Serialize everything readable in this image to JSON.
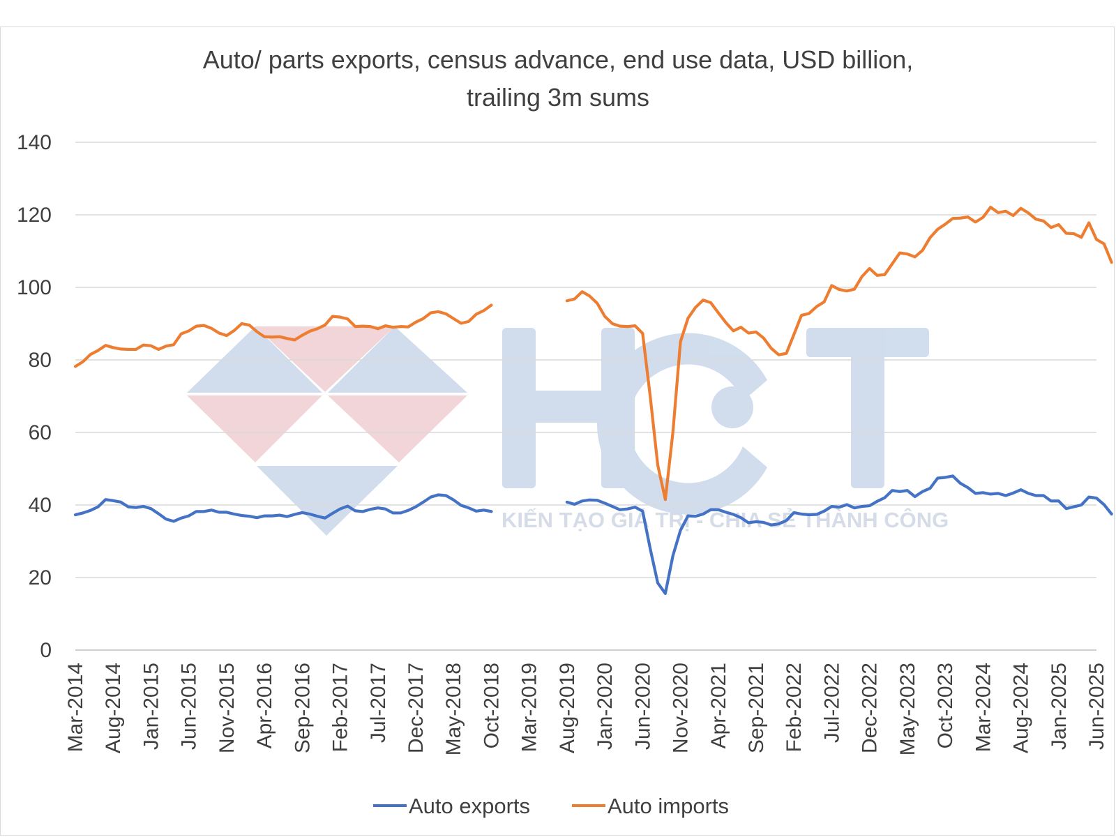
{
  "chart_data": {
    "type": "line",
    "title_line1": "Auto/ parts exports, census advance, end use data, USD billion,",
    "title_line2": "trailing 3m sums",
    "xlabel": "",
    "ylabel": "",
    "ylim": [
      0,
      140
    ],
    "y_ticks": [
      "0",
      "20",
      "40",
      "60",
      "80",
      "100",
      "120",
      "140"
    ],
    "y_tick_values": [
      0,
      20,
      40,
      60,
      80,
      100,
      120,
      140
    ],
    "grid": true,
    "legend_position": "bottom",
    "x_axis": {
      "start": "Mar-2014",
      "end": "Jun-2025",
      "n_points": 136
    },
    "x_tick_labels": [
      "Mar-2014",
      "Aug-2014",
      "Jan-2015",
      "Jun-2015",
      "Nov-2015",
      "Apr-2016",
      "Sep-2016",
      "Feb-2017",
      "Jul-2017",
      "Dec-2017",
      "May-2018",
      "Oct-2018",
      "Mar-2019",
      "Aug-2019",
      "Jan-2020",
      "Jun-2020",
      "Nov-2020",
      "Apr-2021",
      "Sep-2021",
      "Feb-2022",
      "Jul-2022",
      "Dec-2022",
      "May-2023",
      "Oct-2023",
      "Mar-2024",
      "Aug-2024",
      "Jan-2025",
      "Jun-2025"
    ],
    "series": [
      {
        "name": "Auto exports",
        "color": "#4472c4",
        "values": [
          37.3,
          37.8,
          38.5,
          39.5,
          41.5,
          41.2,
          40.8,
          39.5,
          39.3,
          39.6,
          39.0,
          37.6,
          36.1,
          35.5,
          36.4,
          37.0,
          38.2,
          38.2,
          38.6,
          38.0,
          38.0,
          37.5,
          37.1,
          36.9,
          36.5,
          37.0,
          37.0,
          37.2,
          36.8,
          37.4,
          37.9,
          37.5,
          36.9,
          36.4,
          37.7,
          38.9,
          39.7,
          38.4,
          38.2,
          38.8,
          39.2,
          38.9,
          37.8,
          37.8,
          38.5,
          39.5,
          40.8,
          42.2,
          42.8,
          42.6,
          41.4,
          39.9,
          39.2,
          38.3,
          38.6,
          38.2,
          null,
          null,
          null,
          null,
          null,
          null,
          null,
          null,
          null,
          40.8,
          40.2,
          41.1,
          41.4,
          41.3,
          40.5,
          39.6,
          38.7,
          38.9,
          39.4,
          38.3,
          28.0,
          18.5,
          15.6,
          26.0,
          33.0,
          37.0,
          36.9,
          37.5,
          38.7,
          38.7,
          38.0,
          37.4,
          36.5,
          35.1,
          35.4,
          35.2,
          34.5,
          34.8,
          35.7,
          37.9,
          37.5,
          37.3,
          37.4,
          38.3,
          39.6,
          39.4,
          40.1,
          39.2,
          39.6,
          39.8,
          41.0,
          42.0,
          44.0,
          43.7,
          44.0,
          42.3,
          43.7,
          44.6,
          47.4,
          47.6,
          48.0,
          46.0,
          44.8,
          43.2,
          43.4,
          43.0,
          43.2,
          42.6,
          43.3,
          44.2,
          43.2,
          42.6,
          42.6,
          41.1,
          41.1,
          39.0,
          39.5,
          40.0,
          42.2,
          41.9,
          40.1,
          37.5
        ]
      },
      {
        "name": "Auto imports",
        "color": "#ed7d31",
        "values": [
          78.2,
          79.5,
          81.5,
          82.6,
          84.0,
          83.4,
          83.0,
          82.9,
          82.9,
          84.1,
          83.9,
          82.9,
          83.8,
          84.2,
          87.2,
          88.0,
          89.3,
          89.5,
          88.7,
          87.4,
          86.7,
          88.1,
          90.0,
          89.6,
          87.8,
          86.4,
          86.3,
          86.4,
          85.9,
          85.5,
          86.8,
          87.9,
          88.6,
          89.6,
          92.0,
          91.8,
          91.3,
          89.2,
          89.3,
          89.2,
          88.6,
          89.4,
          89.0,
          89.2,
          89.1,
          90.4,
          91.4,
          93.0,
          93.3,
          92.7,
          91.4,
          90.1,
          90.6,
          92.6,
          93.6,
          95.1,
          null,
          null,
          null,
          null,
          null,
          null,
          null,
          null,
          null,
          96.3,
          96.8,
          98.8,
          97.6,
          95.6,
          92.0,
          90.0,
          89.3,
          89.2,
          89.4,
          87.3,
          70.0,
          51.0,
          41.5,
          60.0,
          85.0,
          91.5,
          94.5,
          96.5,
          95.8,
          93.0,
          90.3,
          88.0,
          89.0,
          87.4,
          87.7,
          86.0,
          83.2,
          81.4,
          81.8,
          87.0,
          92.3,
          92.8,
          94.7,
          96.0,
          100.5,
          99.4,
          99.0,
          99.5,
          103.0,
          105.2,
          103.3,
          103.5,
          106.5,
          109.5,
          109.2,
          108.4,
          110.2,
          113.7,
          116.0,
          117.4,
          119.0,
          119.1,
          119.4,
          118.0,
          119.3,
          122.1,
          120.6,
          121.0,
          119.8,
          121.8,
          120.5,
          118.8,
          118.3,
          116.5,
          117.3,
          114.9,
          114.8,
          113.8,
          117.8,
          113.2,
          112.0,
          106.9
        ]
      }
    ]
  },
  "watermark": {
    "logo_letters": "HCT",
    "tagline": "KIẾN TẠO GIÁ TRỊ - CHIA SẺ THÀNH CÔNG",
    "blue": "#cfdcec",
    "pink": "#f1d3d6"
  },
  "legend": [
    {
      "label": "Auto exports",
      "color": "#4472c4"
    },
    {
      "label": "Auto imports",
      "color": "#ed7d31"
    }
  ]
}
